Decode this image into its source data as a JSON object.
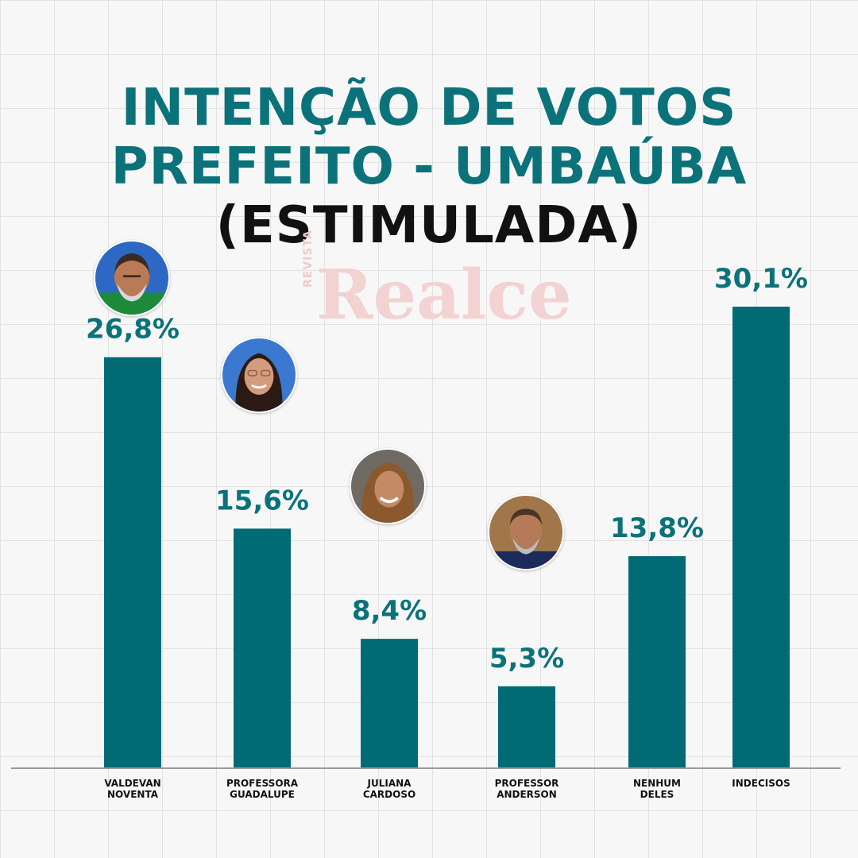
{
  "title": {
    "line1": "INTENÇÃO DE VOTOS",
    "line2": "PREFEITO - UMBAÚBA",
    "line3": "(ESTIMULADA)"
  },
  "watermark": {
    "small": "REVISTA",
    "big": "Realce"
  },
  "colors": {
    "bar": "#006b75",
    "title": "#0b727a",
    "axis": "#9a9a9a"
  },
  "chart_data": {
    "type": "bar",
    "categories": [
      [
        "VALDEVAN",
        "NOVENTA"
      ],
      [
        "PROFESSORA",
        "GUADALUPE"
      ],
      [
        "JULIANA",
        "CARDOSO"
      ],
      [
        "PROFESSOR",
        "ANDERSON"
      ],
      [
        "NENHUM",
        "DELES"
      ],
      [
        "INDECISOS"
      ]
    ],
    "values": [
      26.8,
      15.6,
      8.4,
      5.3,
      13.8,
      30.1
    ],
    "value_labels": [
      "26,8%",
      "15,6%",
      "8,4%",
      "5,3%",
      "13,8%",
      "30,1%"
    ],
    "ylim": [
      0,
      30.1
    ],
    "photos": [
      "avatar-valdevan",
      "avatar-guadalupe",
      "avatar-juliana",
      "avatar-anderson",
      "",
      ""
    ]
  }
}
